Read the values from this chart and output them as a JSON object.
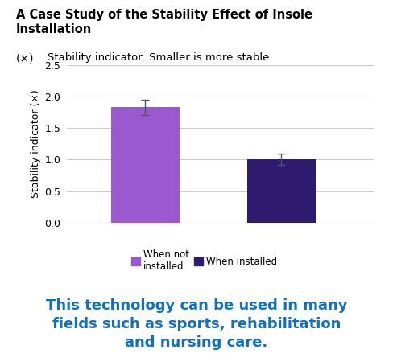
{
  "title_line1": "A Case Study of the Stability Effect of Insole",
  "title_line2": "Installation",
  "subtitle_symbol": "(×)",
  "subtitle_text": "  Stability indicator: Smaller is more stable",
  "bar_values": [
    1.83,
    1.0
  ],
  "bar_errors": [
    0.12,
    0.09
  ],
  "bar_colors": [
    "#9b59d0",
    "#2e1a6e"
  ],
  "ylabel": "Stability indicator (×)",
  "ylim": [
    0,
    2.5
  ],
  "yticks": [
    0,
    0.5,
    1.0,
    1.5,
    2.0,
    2.5
  ],
  "legend_labels": [
    "When not\ninstalled",
    "When installed"
  ],
  "legend_colors": [
    "#9b59d0",
    "#2e1a6e"
  ],
  "bottom_text_line1": "This technology can be used in many",
  "bottom_text_line2": "fields such as sports, rehabilitation",
  "bottom_text_line3": "and nursing care.",
  "bottom_text_color": "#1070c0",
  "background_color": "#ffffff",
  "grid_color": "#cccccc"
}
